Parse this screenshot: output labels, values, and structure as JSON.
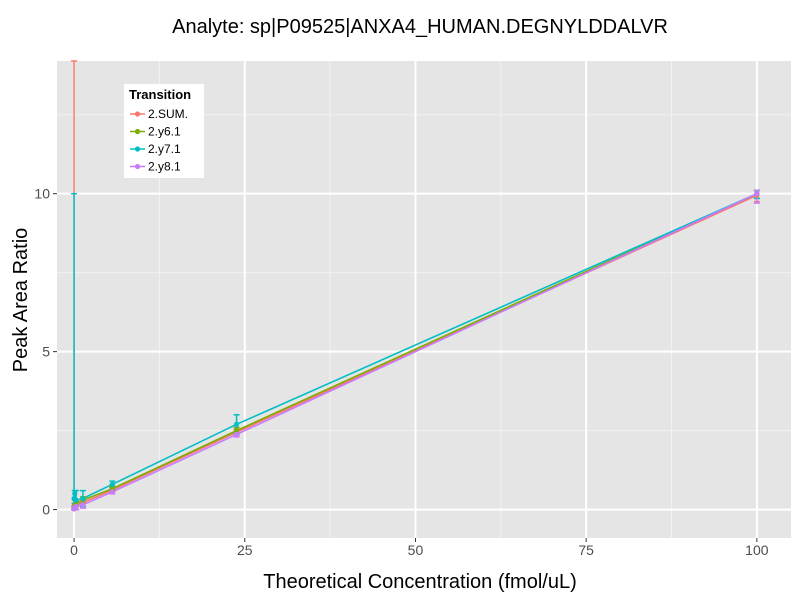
{
  "chart_data": {
    "type": "line",
    "title": "Analyte: sp|P09525|ANXA4_HUMAN.DEGNYLDDALVR",
    "xlabel": "Theoretical Concentration (fmol/uL)",
    "ylabel": "Peak Area Ratio",
    "xlim": [
      -2.5,
      105
    ],
    "ylim": [
      -0.9,
      14.2
    ],
    "x_ticks": [
      0,
      25,
      50,
      75,
      100
    ],
    "y_ticks": [
      0,
      5,
      10
    ],
    "x_tick_labels": [
      "0",
      "25",
      "50",
      "75",
      "100"
    ],
    "y_tick_labels": [
      "0",
      "5",
      "10"
    ],
    "grid": true,
    "legend": {
      "title": "Transition",
      "position": "top-left"
    },
    "x": [
      0,
      0.1,
      0.3,
      1.3,
      5.6,
      23.8,
      100
    ],
    "series": [
      {
        "name": "2.SUM.",
        "color": "#F8766D",
        "values": [
          0.02,
          0.1,
          0.15,
          0.22,
          0.62,
          2.45,
          9.95
        ],
        "error_low": [
          0.0,
          0.0,
          0.0,
          0.05,
          0.55,
          2.35,
          9.75
        ],
        "error_high": [
          14.2,
          0.3,
          0.3,
          0.3,
          0.7,
          2.55,
          10.1
        ]
      },
      {
        "name": "2.y6.1",
        "color": "#7CAE00",
        "values": [
          0.04,
          0.12,
          0.18,
          0.3,
          0.66,
          2.5,
          10.0
        ],
        "error_low": [
          0.0,
          0.05,
          0.1,
          0.2,
          0.6,
          2.4,
          9.85
        ],
        "error_high": [
          0.1,
          0.2,
          0.25,
          0.4,
          0.75,
          2.6,
          10.1
        ]
      },
      {
        "name": "2.y7.1",
        "color": "#00BFC4",
        "values": [
          0.35,
          0.5,
          0.3,
          0.35,
          0.8,
          2.7,
          10.0
        ],
        "error_low": [
          0.0,
          0.2,
          0.0,
          0.1,
          0.7,
          2.4,
          9.85
        ],
        "error_high": [
          10.0,
          0.6,
          0.6,
          0.6,
          0.9,
          3.0,
          10.1
        ]
      },
      {
        "name": "2.y8.1",
        "color": "#C77CFF",
        "values": [
          0.02,
          0.06,
          0.1,
          0.15,
          0.56,
          2.38,
          10.0
        ],
        "error_low": [
          0.0,
          0.0,
          0.0,
          0.05,
          0.5,
          2.3,
          9.7
        ],
        "error_high": [
          0.1,
          0.15,
          0.2,
          0.25,
          0.65,
          2.5,
          10.1
        ]
      }
    ]
  }
}
